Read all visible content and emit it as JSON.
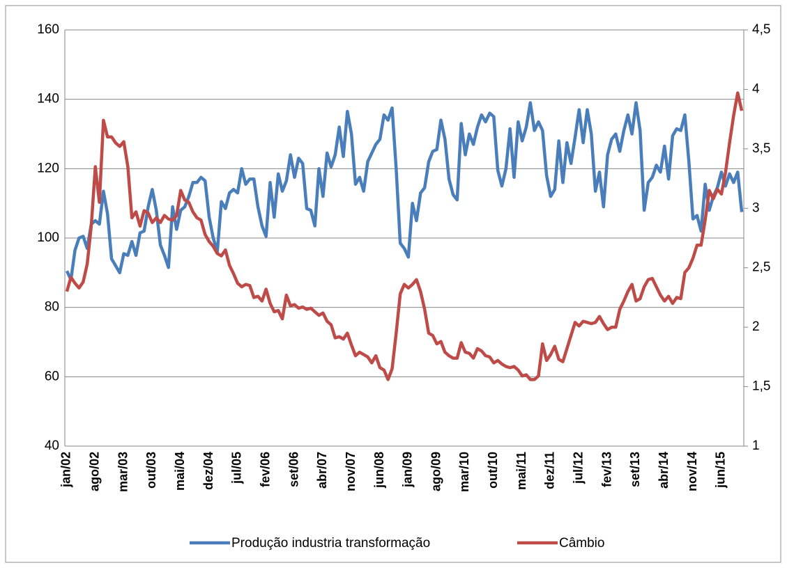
{
  "chart_data": {
    "type": "line",
    "categories": [
      "jan/02",
      null,
      null,
      null,
      null,
      null,
      null,
      "ago/02",
      null,
      null,
      null,
      null,
      null,
      null,
      "mar/03",
      null,
      null,
      null,
      null,
      null,
      null,
      "out/03",
      null,
      null,
      null,
      null,
      null,
      null,
      "mai/04",
      null,
      null,
      null,
      null,
      null,
      null,
      "dez/04",
      null,
      null,
      null,
      null,
      null,
      null,
      "jul/05",
      null,
      null,
      null,
      null,
      null,
      null,
      "fev/06",
      null,
      null,
      null,
      null,
      null,
      null,
      "set/06",
      null,
      null,
      null,
      null,
      null,
      null,
      "abr/07",
      null,
      null,
      null,
      null,
      null,
      null,
      "nov/07",
      null,
      null,
      null,
      null,
      null,
      null,
      "jun/08",
      null,
      null,
      null,
      null,
      null,
      null,
      "jan/09",
      null,
      null,
      null,
      null,
      null,
      null,
      "ago/09",
      null,
      null,
      null,
      null,
      null,
      null,
      "mar/10",
      null,
      null,
      null,
      null,
      null,
      null,
      "out/10",
      null,
      null,
      null,
      null,
      null,
      null,
      "mai/11",
      null,
      null,
      null,
      null,
      null,
      null,
      "dez/11",
      null,
      null,
      null,
      null,
      null,
      null,
      "jul/12",
      null,
      null,
      null,
      null,
      null,
      null,
      "fev/13",
      null,
      null,
      null,
      null,
      null,
      null,
      "set/13",
      null,
      null,
      null,
      null,
      null,
      null,
      "abr/14",
      null,
      null,
      null,
      null,
      null,
      null,
      "nov/14",
      null,
      null,
      null,
      null,
      null,
      null,
      "jun/15",
      null,
      null,
      null,
      null,
      null
    ],
    "series": [
      {
        "name": "Produção industria transformação",
        "color": "#4a7ebb",
        "values": [
          90.5,
          88,
          96.5,
          100,
          100.5,
          97,
          104,
          105,
          104,
          113.5,
          107,
          94,
          92,
          90,
          95.5,
          95,
          99,
          95,
          101.5,
          102,
          109,
          114,
          108,
          98,
          95,
          91.5,
          109,
          102.5,
          108,
          109,
          112,
          116,
          116,
          117.5,
          116.5,
          106,
          100,
          96,
          110.5,
          108.5,
          113,
          114,
          113,
          120,
          115.5,
          117,
          117,
          109,
          103.5,
          100.5,
          116,
          106,
          118.5,
          113.5,
          116.5,
          124,
          117.5,
          123,
          121.5,
          108.5,
          108,
          103.5,
          120,
          112,
          124.5,
          120.5,
          124,
          132,
          123.5,
          136.5,
          130,
          115.5,
          117.5,
          113.5,
          122,
          124.5,
          127,
          128.5,
          135.5,
          134,
          137.5,
          120,
          98.5,
          97,
          94.5,
          110,
          105,
          113,
          114.5,
          122,
          125,
          125.5,
          134,
          128.5,
          117,
          112.5,
          111,
          133,
          124,
          130,
          127,
          132,
          135.5,
          133.5,
          136,
          135,
          119.5,
          115,
          120,
          131.5,
          117.5,
          133.5,
          128,
          132,
          139,
          131,
          133.5,
          131,
          118,
          112,
          114,
          128,
          116,
          127.5,
          121.5,
          129,
          137,
          127.5,
          137,
          130,
          113.5,
          119,
          109,
          124,
          128.5,
          130,
          125,
          131,
          135.5,
          130,
          139,
          131,
          108,
          116,
          117.5,
          121,
          119,
          126.5,
          117,
          129.5,
          131.5,
          131,
          135.5,
          122,
          105.5,
          106.5,
          102,
          115.5,
          108,
          112,
          114.5,
          119,
          115,
          118.5,
          116,
          119,
          107.5
        ]
      },
      {
        "name": "Câmbio",
        "color": "#be4b48",
        "axis": "y2",
        "values": [
          2.3,
          2.42,
          2.37,
          2.33,
          2.38,
          2.53,
          2.85,
          3.35,
          3.05,
          3.74,
          3.6,
          3.6,
          3.55,
          3.52,
          3.56,
          3.35,
          2.92,
          2.97,
          2.85,
          2.98,
          2.96,
          2.88,
          2.92,
          2.88,
          2.94,
          2.91,
          2.9,
          2.94,
          3.15,
          3.07,
          3.05,
          2.97,
          2.92,
          2.9,
          2.78,
          2.72,
          2.68,
          2.62,
          2.6,
          2.65,
          2.52,
          2.45,
          2.37,
          2.34,
          2.36,
          2.35,
          2.25,
          2.26,
          2.22,
          2.32,
          2.2,
          2.13,
          2.14,
          2.07,
          2.27,
          2.18,
          2.19,
          2.16,
          2.17,
          2.15,
          2.16,
          2.13,
          2.1,
          2.12,
          2.05,
          2.02,
          1.91,
          1.92,
          1.9,
          1.95,
          1.85,
          1.76,
          1.79,
          1.77,
          1.75,
          1.7,
          1.76,
          1.66,
          1.64,
          1.56,
          1.65,
          1.95,
          2.28,
          2.36,
          2.33,
          2.36,
          2.4,
          2.3,
          2.15,
          1.95,
          1.93,
          1.86,
          1.88,
          1.79,
          1.76,
          1.74,
          1.74,
          1.87,
          1.79,
          1.78,
          1.74,
          1.82,
          1.8,
          1.76,
          1.75,
          1.7,
          1.72,
          1.69,
          1.67,
          1.66,
          1.67,
          1.64,
          1.59,
          1.6,
          1.56,
          1.56,
          1.59,
          1.86,
          1.72,
          1.77,
          1.84,
          1.73,
          1.71,
          1.82,
          1.93,
          2.04,
          2.01,
          2.05,
          2.04,
          2.03,
          2.04,
          2.09,
          2.03,
          1.98,
          2.0,
          2.0,
          2.15,
          2.22,
          2.3,
          2.36,
          2.22,
          2.24,
          2.34,
          2.4,
          2.41,
          2.34,
          2.27,
          2.22,
          2.26,
          2.2,
          2.25,
          2.24,
          2.46,
          2.5,
          2.58,
          2.69,
          2.69,
          2.9,
          3.15,
          3.08,
          3.16,
          3.12,
          3.3,
          3.55,
          3.78,
          3.97,
          3.82
        ]
      }
    ],
    "ylim": [
      40,
      160
    ],
    "yticks": [
      40,
      60,
      80,
      100,
      120,
      140,
      160
    ],
    "y2lim": [
      1,
      4.5
    ],
    "y2ticks": [
      1,
      {
        "value": 1.5,
        "label": "1,5"
      },
      2,
      {
        "value": 2.5,
        "label": "2,5"
      },
      3,
      {
        "value": 3.5,
        "label": "3,5"
      },
      4,
      {
        "value": 4.5,
        "label": "4,5"
      }
    ],
    "grid": true,
    "legend": "bottom"
  }
}
